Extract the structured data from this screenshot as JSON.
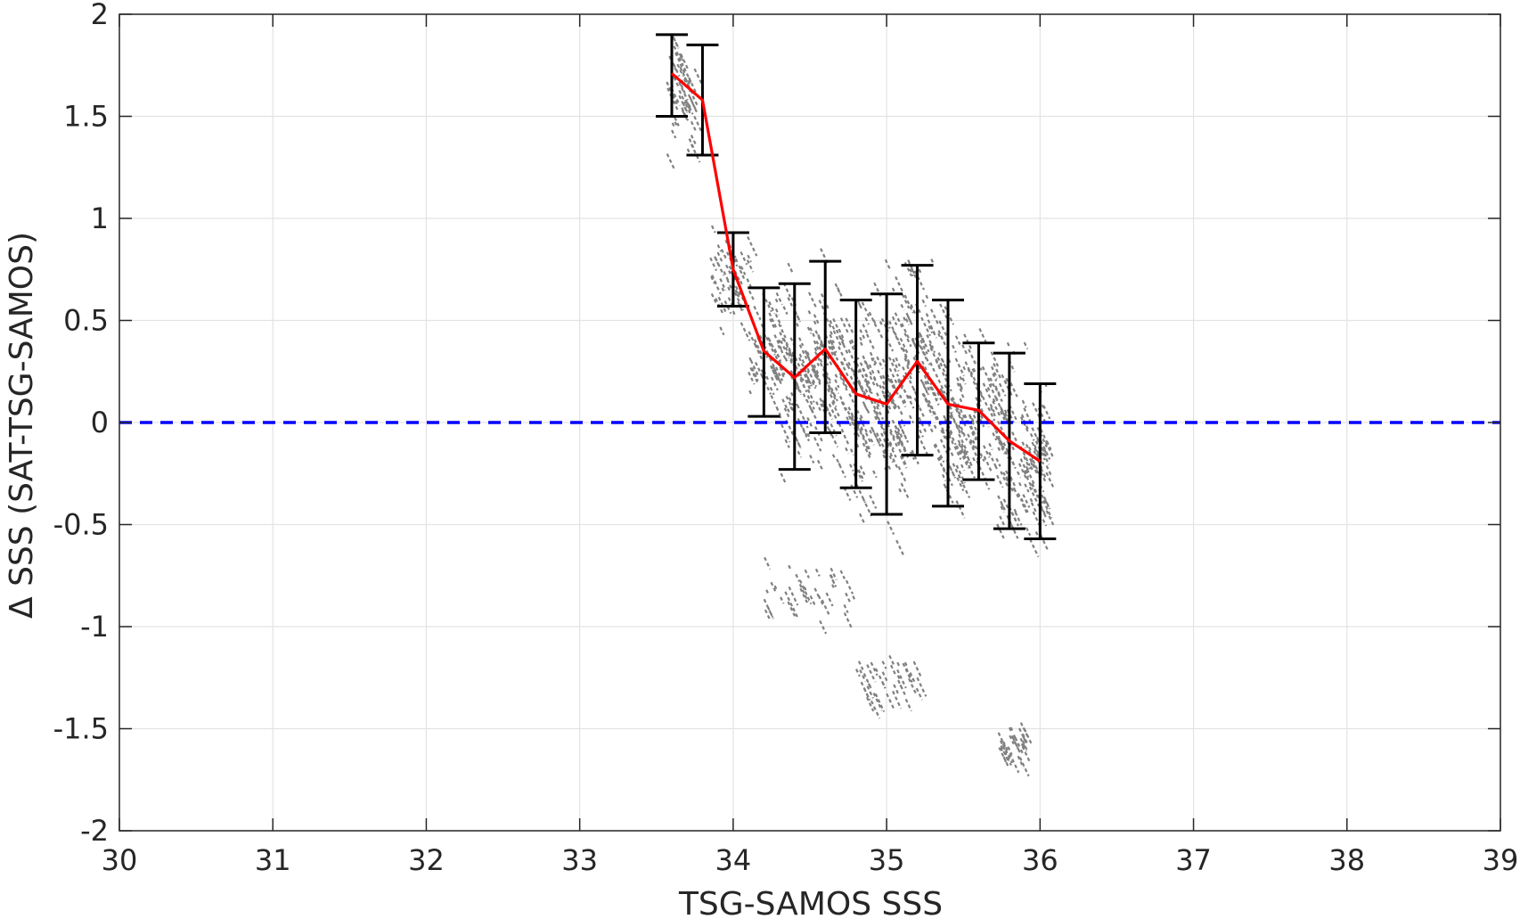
{
  "chart_data": {
    "type": "scatter",
    "title": "",
    "xlabel": "TSG-SAMOS SSS",
    "ylabel": "Δ SSS (SAT-TSG-SAMOS)",
    "xlim": [
      30,
      39
    ],
    "ylim": [
      -2,
      2
    ],
    "grid": true,
    "xticks": [
      30,
      31,
      32,
      33,
      34,
      35,
      36,
      37,
      38,
      39
    ],
    "yticks": [
      -2,
      -1.5,
      -1,
      -0.5,
      0,
      0.5,
      1,
      1.5,
      2
    ],
    "xtick_labels": [
      "30",
      "31",
      "32",
      "33",
      "34",
      "35",
      "36",
      "37",
      "38",
      "39"
    ],
    "ytick_labels": [
      "-2",
      "-1.5",
      "-1",
      "-0.5",
      "0",
      "0.5",
      "1",
      "1.5",
      "2"
    ],
    "reference_line": {
      "y": 0,
      "style": "dashed",
      "color": "#0000ff"
    },
    "series": [
      {
        "kind": "scatter_clusters",
        "color": "#808080",
        "clusters": [
          {
            "x_range": [
              33.55,
              33.75
            ],
            "y_center": 1.62,
            "y_spread": 0.3
          },
          {
            "x_range": [
              33.85,
              34.1
            ],
            "y_center": 0.72,
            "y_spread": 0.25
          },
          {
            "x_range": [
              34.1,
              34.3
            ],
            "y_center": 0.38,
            "y_spread": 0.3
          },
          {
            "x_range": [
              34.3,
              34.5
            ],
            "y_center": 0.25,
            "y_spread": 0.45
          },
          {
            "x_range": [
              34.5,
              34.7
            ],
            "y_center": 0.3,
            "y_spread": 0.5
          },
          {
            "x_range": [
              34.7,
              34.9
            ],
            "y_center": 0.15,
            "y_spread": 0.55
          },
          {
            "x_range": [
              34.9,
              35.1
            ],
            "y_center": 0.1,
            "y_spread": 0.6
          },
          {
            "x_range": [
              35.1,
              35.3
            ],
            "y_center": 0.3,
            "y_spread": 0.5
          },
          {
            "x_range": [
              35.3,
              35.5
            ],
            "y_center": 0.1,
            "y_spread": 0.5
          },
          {
            "x_range": [
              35.5,
              35.7
            ],
            "y_center": 0.05,
            "y_spread": 0.35
          },
          {
            "x_range": [
              35.7,
              35.9
            ],
            "y_center": -0.1,
            "y_spread": 0.45
          },
          {
            "x_range": [
              35.9,
              36.05
            ],
            "y_center": -0.2,
            "y_spread": 0.35
          },
          {
            "x_range": [
              34.2,
              34.8
            ],
            "y_center": -0.8,
            "y_spread": 0.15
          },
          {
            "x_range": [
              34.8,
              35.2
            ],
            "y_center": -1.25,
            "y_spread": 0.15
          },
          {
            "x_range": [
              35.7,
              35.9
            ],
            "y_center": -1.55,
            "y_spread": 0.1
          }
        ]
      },
      {
        "kind": "mean_line",
        "color": "#ff0000",
        "x": [
          33.6,
          33.8,
          34.0,
          34.2,
          34.4,
          34.6,
          34.8,
          35.0,
          35.2,
          35.4,
          35.6,
          35.8,
          36.0
        ],
        "y": [
          1.71,
          1.58,
          0.75,
          0.35,
          0.22,
          0.36,
          0.14,
          0.09,
          0.3,
          0.09,
          0.06,
          -0.09,
          -0.19
        ]
      },
      {
        "kind": "error_bars",
        "color": "#000000",
        "x": [
          33.6,
          33.8,
          34.0,
          34.2,
          34.4,
          34.6,
          34.8,
          35.0,
          35.2,
          35.4,
          35.6,
          35.8,
          36.0
        ],
        "upper": [
          1.9,
          1.85,
          0.93,
          0.66,
          0.68,
          0.79,
          0.6,
          0.63,
          0.77,
          0.6,
          0.39,
          0.34,
          0.19
        ],
        "lower": [
          1.5,
          1.31,
          0.57,
          0.03,
          -0.23,
          -0.05,
          -0.32,
          -0.45,
          -0.16,
          -0.41,
          -0.28,
          -0.52,
          -0.57
        ]
      }
    ]
  }
}
